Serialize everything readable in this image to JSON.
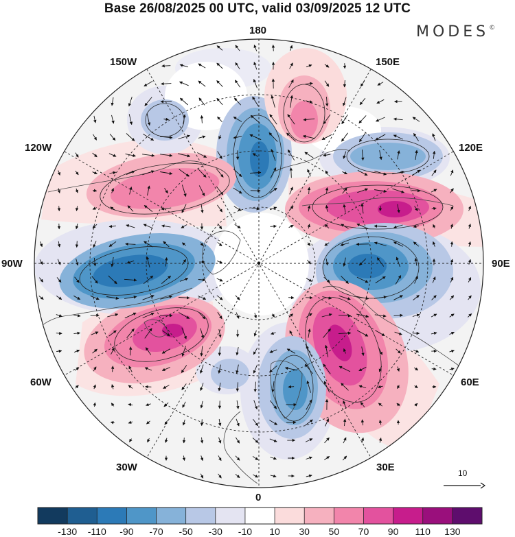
{
  "title": "Base 26/08/2025 00 UTC, valid 03/09/2025 12 UTC",
  "logo": {
    "text": "MODES",
    "mark": "©"
  },
  "longitude_labels": [
    "180",
    "150E",
    "120E",
    "90E",
    "60E",
    "30E",
    "0",
    "30W",
    "60W",
    "90W",
    "120W",
    "150W"
  ],
  "reference_vector": {
    "label": "10"
  },
  "colorbar": {
    "ticks": [
      "-130",
      "-110",
      "-90",
      "-70",
      "-50",
      "-30",
      "-10",
      "10",
      "30",
      "50",
      "70",
      "90",
      "110",
      "130"
    ],
    "colors": [
      "#123a5e",
      "#1f5e91",
      "#2c7ab7",
      "#4f96c8",
      "#86b2d9",
      "#b8c8e6",
      "#e4e4f2",
      "#ffffff",
      "#fbdcdc",
      "#f6b1bf",
      "#f285ab",
      "#e3529e",
      "#c71d8c",
      "#9a0f7c",
      "#5e0d6d"
    ]
  },
  "anomaly_centers": [
    {
      "name": "neg-pacific",
      "sign": "negative",
      "strength": -90
    },
    {
      "name": "pos-east-siberia",
      "sign": "positive",
      "strength": 70
    },
    {
      "name": "neg-okhotsk",
      "sign": "negative",
      "strength": -50
    },
    {
      "name": "pos-siberia",
      "sign": "positive",
      "strength": 90
    },
    {
      "name": "neg-central-asia",
      "sign": "negative",
      "strength": -90
    },
    {
      "name": "pos-russia",
      "sign": "positive",
      "strength": 90
    },
    {
      "name": "neg-europe",
      "sign": "negative",
      "strength": -90
    },
    {
      "name": "pos-atlantic",
      "sign": "positive",
      "strength": 90
    },
    {
      "name": "neg-canada",
      "sign": "negative",
      "strength": -90
    },
    {
      "name": "pos-alaska",
      "sign": "positive",
      "strength": 70
    },
    {
      "name": "neg-gulf-alaska",
      "sign": "negative",
      "strength": -50
    }
  ]
}
